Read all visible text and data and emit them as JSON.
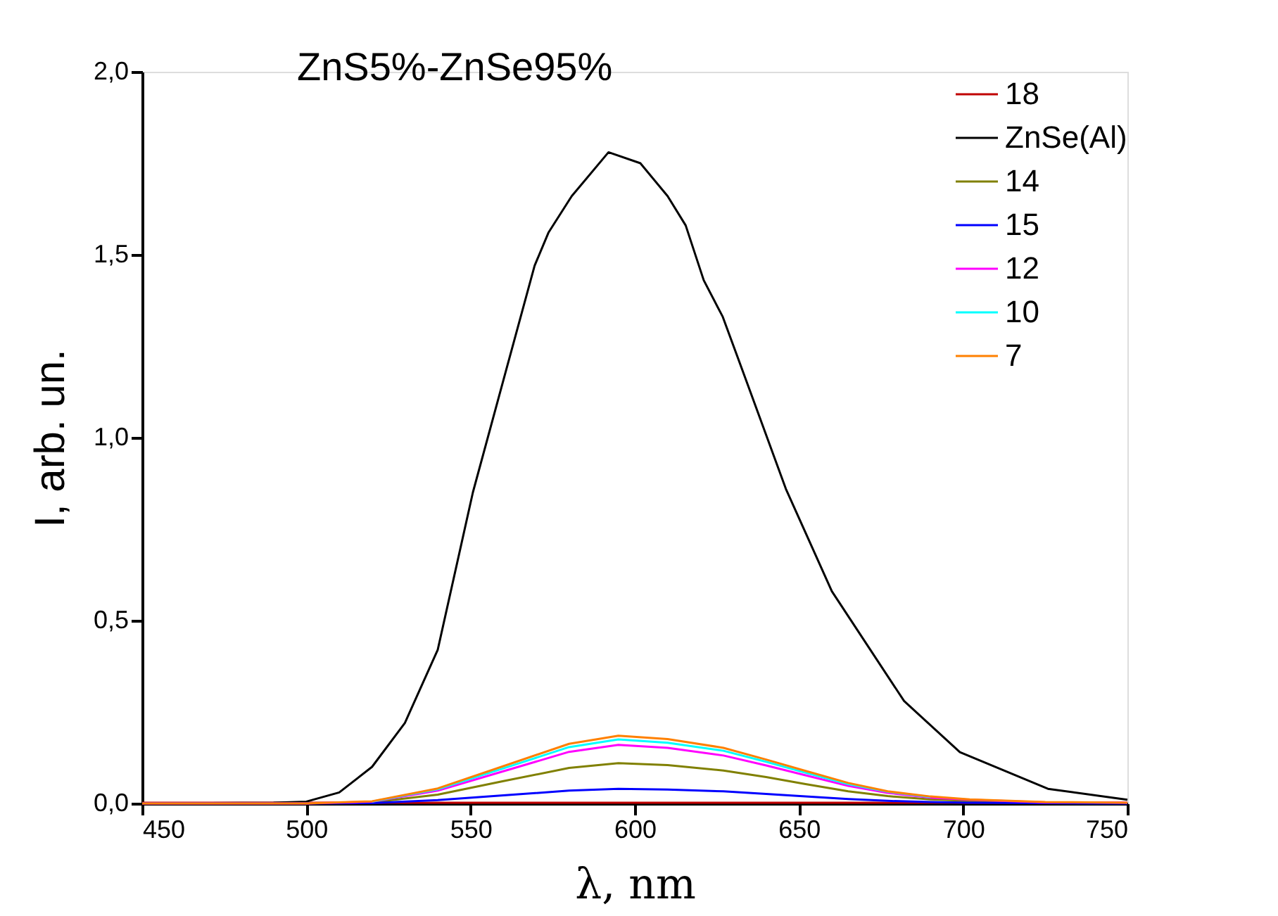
{
  "chart_data": {
    "type": "line",
    "title": "ZnS5%-ZnSe95%",
    "xlabel": "λ, nm",
    "ylabel": "I, arb. un.",
    "xlim": [
      450,
      750
    ],
    "xticks": [
      450,
      500,
      550,
      600,
      650,
      700,
      750
    ],
    "ylim": [
      0,
      2
    ],
    "yticks": [
      {
        "value": 0,
        "label": "0,0"
      },
      {
        "value": 0.5,
        "label": "0,5"
      },
      {
        "value": 1,
        "label": "1,0"
      },
      {
        "value": 1.5,
        "label": "1,5"
      },
      {
        "value": 2,
        "label": "2,0"
      }
    ],
    "grid": false,
    "legend": "top right",
    "marker": "none",
    "line_style": "solid",
    "series": [
      {
        "name": "18",
        "color": "#c00000",
        "x": [
          450,
          500,
          550,
          600,
          650,
          700,
          750
        ],
        "values": [
          0.002,
          0.002,
          0.002,
          0.002,
          0.002,
          0.002,
          0.002
        ]
      },
      {
        "name": "ZnSe(Al)",
        "color": "#000000",
        "x": [
          450,
          490,
          500,
          510,
          520,
          530,
          540,
          550.7,
          561,
          569.5,
          573.7,
          580.8,
          592,
          601.7,
          610,
          615.5,
          621,
          626.8,
          635,
          646,
          660,
          682,
          699,
          725.8,
          750
        ],
        "values": [
          0,
          0.002,
          0.005,
          0.03,
          0.1,
          0.22,
          0.42,
          0.85,
          1.19,
          1.47,
          1.56,
          1.66,
          1.78,
          1.75,
          1.66,
          1.58,
          1.43,
          1.33,
          1.13,
          0.86,
          0.58,
          0.28,
          0.14,
          0.04,
          0.01
        ]
      },
      {
        "name": "14",
        "color": "#808000",
        "x": [
          450,
          500,
          520,
          540,
          560,
          580,
          595,
          610,
          627,
          640,
          652,
          665,
          677,
          690,
          702,
          725,
          750
        ],
        "values": [
          0,
          0,
          0.003,
          0.024,
          0.061,
          0.097,
          0.11,
          0.105,
          0.09,
          0.072,
          0.053,
          0.033,
          0.02,
          0.011,
          0.007,
          0.002,
          0.001
        ]
      },
      {
        "name": "15",
        "color": "#0000ff",
        "x": [
          450,
          500,
          520,
          540,
          560,
          580,
          595,
          610,
          627,
          640,
          652,
          665,
          677,
          690,
          702,
          725,
          750
        ],
        "values": [
          0,
          0,
          0.001,
          0.009,
          0.022,
          0.035,
          0.04,
          0.038,
          0.033,
          0.026,
          0.019,
          0.012,
          0.007,
          0.004,
          0.002,
          0.001,
          0
        ]
      },
      {
        "name": "12",
        "color": "#ff00ff",
        "x": [
          450,
          500,
          520,
          540,
          560,
          580,
          595,
          610,
          627,
          640,
          652,
          665,
          677,
          690,
          702,
          725,
          750
        ],
        "values": [
          0,
          0,
          0.005,
          0.035,
          0.088,
          0.141,
          0.16,
          0.152,
          0.131,
          0.104,
          0.077,
          0.048,
          0.029,
          0.016,
          0.01,
          0.003,
          0.002
        ]
      },
      {
        "name": "10",
        "color": "#00ffff",
        "x": [
          520,
          540,
          560,
          580,
          595,
          610,
          627,
          640,
          652,
          665,
          677,
          690
        ],
        "values": [
          0.005,
          0.039,
          0.096,
          0.154,
          0.175,
          0.166,
          0.144,
          0.114,
          0.084,
          0.053,
          0.032,
          0.018
        ]
      },
      {
        "name": "7",
        "color": "#ff8000",
        "x": [
          450,
          500,
          520,
          540,
          560,
          580,
          595,
          610,
          627,
          640,
          652,
          665,
          677,
          690,
          702,
          725,
          750
        ],
        "values": [
          0,
          0,
          0.006,
          0.041,
          0.102,
          0.163,
          0.185,
          0.176,
          0.152,
          0.12,
          0.089,
          0.056,
          0.033,
          0.019,
          0.011,
          0.004,
          0.002
        ]
      }
    ]
  }
}
